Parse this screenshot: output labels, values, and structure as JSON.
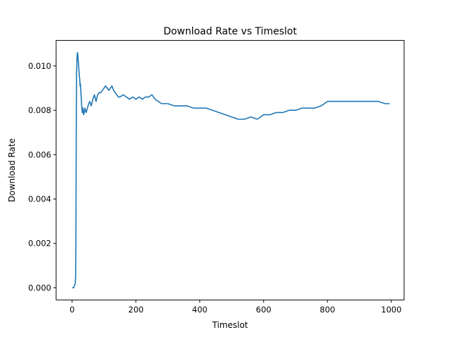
{
  "chart_data": {
    "type": "line",
    "title": "Download Rate vs Timeslot",
    "xlabel": "Timeslot",
    "ylabel": "Download Rate",
    "xlim": [
      -50,
      1040
    ],
    "ylim": [
      -0.00055,
      0.01115
    ],
    "xticks": [
      0,
      200,
      400,
      600,
      800,
      1000
    ],
    "xtick_labels": [
      "0",
      "200",
      "400",
      "600",
      "800",
      "1000"
    ],
    "yticks": [
      0.0,
      0.002,
      0.004,
      0.006,
      0.008,
      0.01
    ],
    "ytick_labels": [
      "0.000",
      "0.002",
      "0.004",
      "0.006",
      "0.008",
      "0.010"
    ],
    "grid": false,
    "legend": "none",
    "series": [
      {
        "color": "#1f77b4",
        "x": [
          0,
          5,
          10,
          11,
          12,
          13,
          14,
          15,
          16,
          17,
          18,
          19,
          20,
          21,
          22,
          23,
          24,
          25,
          26,
          27,
          28,
          29,
          30,
          32,
          34,
          36,
          38,
          40,
          42,
          44,
          46,
          48,
          50,
          55,
          60,
          65,
          70,
          75,
          80,
          85,
          90,
          95,
          100,
          105,
          110,
          115,
          120,
          125,
          130,
          135,
          140,
          145,
          150,
          160,
          170,
          180,
          190,
          200,
          210,
          220,
          230,
          240,
          250,
          260,
          270,
          280,
          290,
          300,
          320,
          340,
          360,
          380,
          400,
          420,
          440,
          460,
          480,
          500,
          520,
          540,
          560,
          580,
          600,
          620,
          640,
          660,
          680,
          700,
          720,
          740,
          760,
          780,
          800,
          820,
          840,
          860,
          880,
          900,
          920,
          940,
          960,
          980,
          995
        ],
        "y": [
          0.0,
          0.0,
          0.0002,
          0.0005,
          0.0021,
          0.007,
          0.0095,
          0.0102,
          0.0105,
          0.0106,
          0.0105,
          0.0103,
          0.0101,
          0.0099,
          0.0097,
          0.0095,
          0.0094,
          0.0091,
          0.0092,
          0.009,
          0.0087,
          0.0085,
          0.0082,
          0.0079,
          0.0081,
          0.0078,
          0.0079,
          0.0081,
          0.008,
          0.0079,
          0.008,
          0.0081,
          0.0082,
          0.0084,
          0.0082,
          0.0085,
          0.0087,
          0.0084,
          0.0087,
          0.0088,
          0.0088,
          0.0089,
          0.009,
          0.0091,
          0.009,
          0.0089,
          0.009,
          0.0091,
          0.0089,
          0.0088,
          0.0087,
          0.0086,
          0.0086,
          0.0087,
          0.0086,
          0.0085,
          0.0086,
          0.0085,
          0.0086,
          0.0085,
          0.0086,
          0.0086,
          0.0087,
          0.0085,
          0.0084,
          0.0083,
          0.0083,
          0.0083,
          0.0082,
          0.0082,
          0.0082,
          0.0081,
          0.0081,
          0.0081,
          0.008,
          0.0079,
          0.0078,
          0.0077,
          0.0076,
          0.0076,
          0.0077,
          0.0076,
          0.0078,
          0.0078,
          0.0079,
          0.0079,
          0.008,
          0.008,
          0.0081,
          0.0081,
          0.0081,
          0.0082,
          0.0084,
          0.0084,
          0.0084,
          0.0084,
          0.0084,
          0.0084,
          0.0084,
          0.0084,
          0.0084,
          0.0083,
          0.0083
        ]
      }
    ]
  }
}
